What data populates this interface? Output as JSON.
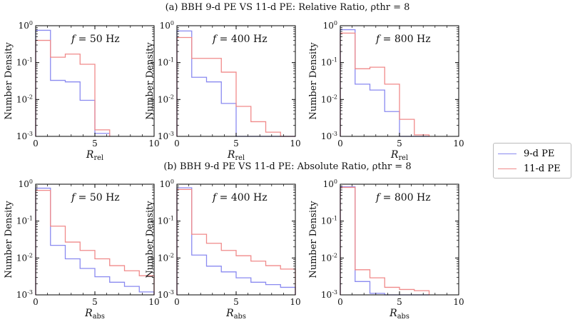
{
  "titles": {
    "top": "(a) BBH 9-d PE VS 11-d PE: Relative Ratio, ρthr = 8",
    "bottom": "(b) BBH 9-d PE VS 11-d PE: Absolute Ratio, ρthr = 8"
  },
  "legend": [
    {
      "label": "9-d PE",
      "color": "#8a8af0"
    },
    {
      "label": "11-d PE",
      "color": "#f08a8a"
    }
  ],
  "chart_data": [
    {
      "type": "bar",
      "row": "a",
      "annotation": "f = 50 Hz",
      "xlabel": "Rrel",
      "ylabel": "Number Density",
      "xlim": [
        0,
        10
      ],
      "ylim": [
        0.001,
        1
      ],
      "yscale": "log",
      "xticks": [
        "0",
        "5",
        "10"
      ],
      "yticks": [
        "10^0",
        "10^-1",
        "10^-2",
        "10^-3"
      ],
      "bin_edges": [
        0,
        1.25,
        2.5,
        3.75,
        5,
        6.25
      ],
      "series": [
        {
          "name": "9-d PE",
          "values": [
            0.75,
            0.033,
            0.03,
            0.0095,
            0.0012
          ]
        },
        {
          "name": "11-d PE",
          "values": [
            0.4,
            0.14,
            0.17,
            0.09,
            0.0015
          ]
        }
      ]
    },
    {
      "type": "bar",
      "row": "a",
      "annotation": "f = 400 Hz",
      "xlabel": "Rrel",
      "ylabel": "Number Density",
      "xlim": [
        0,
        10
      ],
      "ylim": [
        0.001,
        1
      ],
      "yscale": "log",
      "xticks": [
        "0",
        "5",
        "10"
      ],
      "yticks": [
        "10^0",
        "10^-1",
        "10^-2",
        "10^-3"
      ],
      "bin_edges": [
        0,
        1.25,
        2.5,
        3.75,
        5,
        6.25,
        7.5,
        8.75,
        10
      ],
      "series": [
        {
          "name": "9-d PE",
          "values": [
            0.72,
            0.04,
            0.03,
            0.0078,
            0.001,
            0.001,
            0.001,
            0.001
          ]
        },
        {
          "name": "11-d PE",
          "values": [
            0.48,
            0.13,
            0.13,
            0.055,
            0.0065,
            0.0025,
            0.0013,
            0.001
          ]
        }
      ]
    },
    {
      "type": "bar",
      "row": "a",
      "annotation": "f = 800 Hz",
      "xlabel": "Rrel",
      "ylabel": "Number Density",
      "xlim": [
        0,
        10
      ],
      "ylim": [
        0.001,
        1
      ],
      "yscale": "log",
      "xticks": [
        "0",
        "5",
        "10"
      ],
      "yticks": [
        "10^0",
        "10^-1",
        "10^-2",
        "10^-3"
      ],
      "bin_edges": [
        0,
        1.25,
        2.5,
        3.75,
        5,
        6.25,
        7.5
      ],
      "series": [
        {
          "name": "9-d PE",
          "values": [
            0.78,
            0.026,
            0.018,
            0.0047,
            0.001,
            0.001
          ]
        },
        {
          "name": "11-d PE",
          "values": [
            0.63,
            0.068,
            0.075,
            0.026,
            0.0029,
            0.0011
          ]
        }
      ]
    },
    {
      "type": "bar",
      "row": "b",
      "annotation": "f = 50 Hz",
      "xlabel": "Rabs",
      "ylabel": "Number Density",
      "xlim": [
        0,
        10
      ],
      "ylim": [
        0.001,
        1
      ],
      "yscale": "log",
      "xticks": [
        "0",
        "5",
        "10"
      ],
      "yticks": [
        "10^0",
        "10^-1",
        "10^-2",
        "10^-3"
      ],
      "bin_edges": [
        0,
        1.25,
        2.5,
        3.75,
        5,
        6.25,
        7.5,
        8.75,
        10
      ],
      "series": [
        {
          "name": "9-d PE",
          "values": [
            0.78,
            0.022,
            0.0095,
            0.0052,
            0.0031,
            0.0022,
            0.0017,
            0.0012
          ]
        },
        {
          "name": "11-d PE",
          "values": [
            0.68,
            0.073,
            0.027,
            0.016,
            0.0095,
            0.0062,
            0.0045,
            0.0033
          ]
        }
      ]
    },
    {
      "type": "bar",
      "row": "b",
      "annotation": "f = 400 Hz",
      "xlabel": "Rabs",
      "ylabel": "Number Density",
      "xlim": [
        0,
        10
      ],
      "ylim": [
        0.001,
        1
      ],
      "yscale": "log",
      "xticks": [
        "0",
        "5",
        "10"
      ],
      "yticks": [
        "10^0",
        "10^-1",
        "10^-2",
        "10^-3"
      ],
      "bin_edges": [
        0,
        1.25,
        2.5,
        3.75,
        5,
        6.25,
        7.5,
        8.75,
        10
      ],
      "series": [
        {
          "name": "9-d PE",
          "values": [
            0.8,
            0.012,
            0.006,
            0.0042,
            0.0029,
            0.0022,
            0.0019,
            0.0016
          ]
        },
        {
          "name": "11-d PE",
          "values": [
            0.72,
            0.044,
            0.025,
            0.016,
            0.0115,
            0.0082,
            0.0062,
            0.005
          ]
        }
      ]
    },
    {
      "type": "bar",
      "row": "b",
      "annotation": "f = 800 Hz",
      "xlabel": "Rabs",
      "ylabel": "Number Density",
      "xlim": [
        0,
        10
      ],
      "ylim": [
        0.001,
        1
      ],
      "yscale": "log",
      "xticks": [
        "0",
        "5",
        "10"
      ],
      "yticks": [
        "10^0",
        "10^-1",
        "10^-2",
        "10^-3"
      ],
      "bin_edges": [
        0,
        1.25,
        2.5,
        3.75,
        5,
        6.25,
        7.5
      ],
      "series": [
        {
          "name": "9-d PE",
          "values": [
            0.85,
            0.0023,
            0.0011,
            0.001,
            0.001,
            0.001
          ]
        },
        {
          "name": "11-d PE",
          "values": [
            0.82,
            0.0048,
            0.0029,
            0.0016,
            0.0014,
            0.0013
          ]
        }
      ]
    }
  ]
}
